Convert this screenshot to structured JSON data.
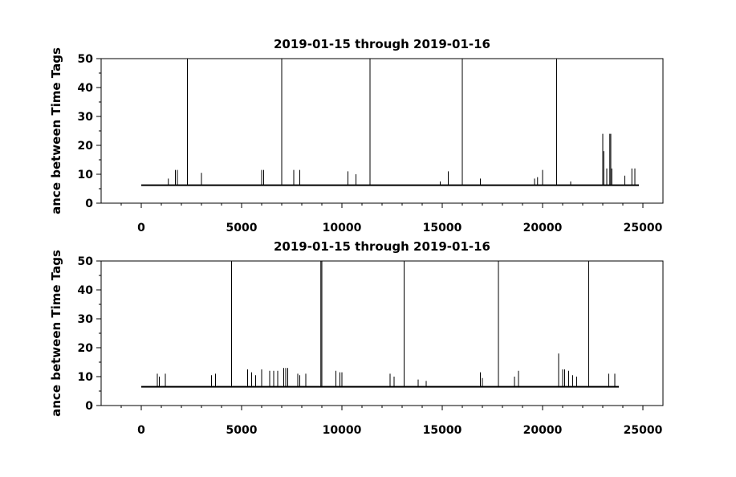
{
  "chart_data": [
    {
      "type": "line",
      "title": "2019-01-15 through 2019-01-16",
      "xlabel": "",
      "ylabel": "ance between Time Tags",
      "xlim": [
        -2000,
        26000
      ],
      "ylim": [
        0,
        50
      ],
      "xticks": [
        0,
        5000,
        10000,
        15000,
        20000,
        25000
      ],
      "xtick_labels": [
        "0",
        "5000",
        "10000",
        "15000",
        "20000",
        "25000"
      ],
      "yticks": [
        0,
        10,
        20,
        30,
        40,
        50
      ],
      "ytick_labels": [
        "0",
        "10",
        "20",
        "30",
        "40",
        "50"
      ],
      "grid": false,
      "series": [
        {
          "baseline": {
            "x": [
              0,
              24800
            ],
            "y": [
              6.2,
              6.2
            ]
          },
          "spikes": [
            {
              "x": 1350,
              "y": 8.5
            },
            {
              "x": 1700,
              "y": 11.5
            },
            {
              "x": 1800,
              "y": 11.5
            },
            {
              "x": 2300,
              "y": 50
            },
            {
              "x": 3000,
              "y": 10.5
            },
            {
              "x": 6000,
              "y": 11.5
            },
            {
              "x": 6100,
              "y": 11.5
            },
            {
              "x": 7000,
              "y": 50
            },
            {
              "x": 7600,
              "y": 11.5
            },
            {
              "x": 7900,
              "y": 11.5
            },
            {
              "x": 10300,
              "y": 11
            },
            {
              "x": 10700,
              "y": 10
            },
            {
              "x": 11400,
              "y": 50
            },
            {
              "x": 14900,
              "y": 7.5
            },
            {
              "x": 15300,
              "y": 11
            },
            {
              "x": 16000,
              "y": 50
            },
            {
              "x": 16900,
              "y": 8.5
            },
            {
              "x": 19600,
              "y": 8.5
            },
            {
              "x": 19750,
              "y": 9
            },
            {
              "x": 20000,
              "y": 11.5
            },
            {
              "x": 20700,
              "y": 50
            },
            {
              "x": 21400,
              "y": 7.5
            },
            {
              "x": 23000,
              "y": 24
            },
            {
              "x": 23050,
              "y": 18
            },
            {
              "x": 23200,
              "y": 12
            },
            {
              "x": 23350,
              "y": 24
            },
            {
              "x": 23400,
              "y": 24
            },
            {
              "x": 23450,
              "y": 12
            },
            {
              "x": 24100,
              "y": 9.5
            },
            {
              "x": 24450,
              "y": 12
            },
            {
              "x": 24600,
              "y": 12
            }
          ]
        }
      ]
    },
    {
      "type": "line",
      "title": "2019-01-15 through 2019-01-16",
      "xlabel": "",
      "ylabel": "ance between Time Tags",
      "xlim": [
        -2000,
        26000
      ],
      "ylim": [
        0,
        50
      ],
      "xticks": [
        0,
        5000,
        10000,
        15000,
        20000,
        25000
      ],
      "xtick_labels": [
        "0",
        "5000",
        "10000",
        "15000",
        "20000",
        "25000"
      ],
      "yticks": [
        0,
        10,
        20,
        30,
        40,
        50
      ],
      "ytick_labels": [
        "0",
        "10",
        "20",
        "30",
        "40",
        "50"
      ],
      "grid": false,
      "series": [
        {
          "baseline": {
            "x": [
              0,
              23800
            ],
            "y": [
              6.5,
              6.5
            ]
          },
          "spikes": [
            {
              "x": 800,
              "y": 11
            },
            {
              "x": 900,
              "y": 10
            },
            {
              "x": 1200,
              "y": 11
            },
            {
              "x": 3500,
              "y": 10.5
            },
            {
              "x": 3700,
              "y": 11
            },
            {
              "x": 4500,
              "y": 50
            },
            {
              "x": 5300,
              "y": 12.5
            },
            {
              "x": 5500,
              "y": 11.5
            },
            {
              "x": 5700,
              "y": 10.5
            },
            {
              "x": 6000,
              "y": 12.5
            },
            {
              "x": 6400,
              "y": 12
            },
            {
              "x": 6600,
              "y": 12
            },
            {
              "x": 6800,
              "y": 12
            },
            {
              "x": 7100,
              "y": 13
            },
            {
              "x": 7200,
              "y": 13
            },
            {
              "x": 7300,
              "y": 13
            },
            {
              "x": 7800,
              "y": 11
            },
            {
              "x": 7900,
              "y": 10.5
            },
            {
              "x": 8200,
              "y": 11
            },
            {
              "x": 8950,
              "y": 50
            },
            {
              "x": 9000,
              "y": 50
            },
            {
              "x": 9700,
              "y": 12
            },
            {
              "x": 9900,
              "y": 11.5
            },
            {
              "x": 10000,
              "y": 11.5
            },
            {
              "x": 12400,
              "y": 11
            },
            {
              "x": 12600,
              "y": 10
            },
            {
              "x": 13100,
              "y": 50
            },
            {
              "x": 13800,
              "y": 9
            },
            {
              "x": 14200,
              "y": 8.5
            },
            {
              "x": 16900,
              "y": 11.5
            },
            {
              "x": 17000,
              "y": 9.5
            },
            {
              "x": 17800,
              "y": 50
            },
            {
              "x": 18600,
              "y": 10
            },
            {
              "x": 18800,
              "y": 12
            },
            {
              "x": 20800,
              "y": 18
            },
            {
              "x": 21000,
              "y": 12.5
            },
            {
              "x": 21100,
              "y": 12.5
            },
            {
              "x": 21300,
              "y": 12
            },
            {
              "x": 21500,
              "y": 10.5
            },
            {
              "x": 21700,
              "y": 10
            },
            {
              "x": 22300,
              "y": 50
            },
            {
              "x": 23300,
              "y": 11
            },
            {
              "x": 23600,
              "y": 11
            }
          ]
        }
      ]
    }
  ]
}
